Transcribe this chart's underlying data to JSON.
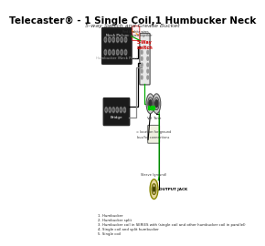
{
  "title": "Telecaster® - 1 Single Coil,1 Humbucker Neck",
  "subtitle": "5-way Switch and Grease Bucket",
  "bg_color": "#ffffff",
  "title_color": "#000000",
  "title_fontsize": 7.5,
  "subtitle_fontsize": 4.5,
  "legend_items": [
    "1. Humbucker",
    "2. Humbucker split",
    "3. Humbucker coil in SERIES with (single coil and other humbucker coil in parallel)",
    "4. Single coil and split humbucker",
    "5. Single coil"
  ],
  "wire_colors": {
    "green": "#00aa00",
    "black": "#000000",
    "white": "#888888",
    "red": "#cc0000",
    "yellow": "#ccaa00",
    "orange": "#ff8800",
    "gray": "#666666"
  }
}
